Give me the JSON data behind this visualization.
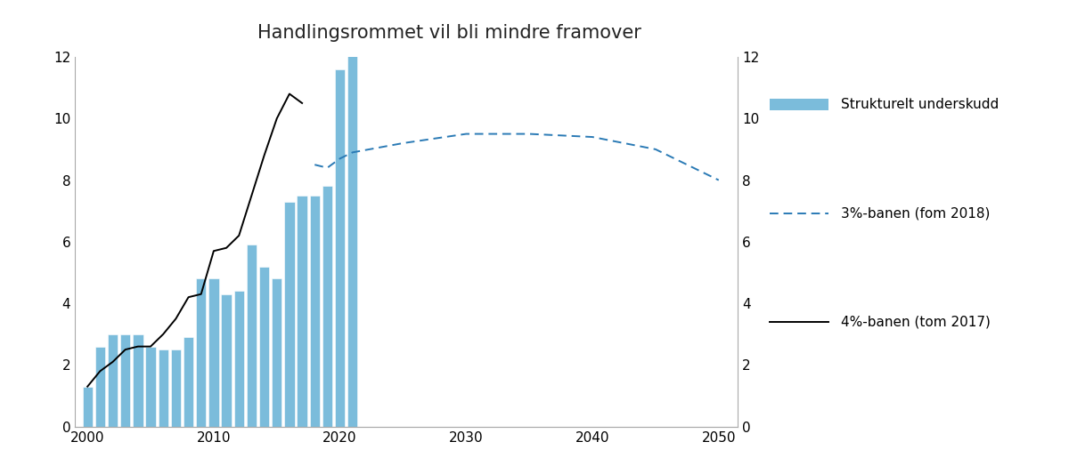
{
  "title": "Handlingsrommet vil bli mindre framover",
  "bar_years": [
    2000,
    2001,
    2002,
    2003,
    2004,
    2005,
    2006,
    2007,
    2008,
    2009,
    2010,
    2011,
    2012,
    2013,
    2014,
    2015,
    2016,
    2017,
    2018,
    2019,
    2020,
    2021
  ],
  "bar_values": [
    1.3,
    2.6,
    3.0,
    3.0,
    3.0,
    2.6,
    2.5,
    2.5,
    2.9,
    4.8,
    4.8,
    4.3,
    4.4,
    5.9,
    5.2,
    4.8,
    7.3,
    7.5,
    7.5,
    7.8,
    11.6,
    12.1
  ],
  "bar_color": "#7bbcdb",
  "line4_years": [
    2000,
    2001,
    2002,
    2003,
    2004,
    2005,
    2006,
    2007,
    2008,
    2009,
    2010,
    2011,
    2012,
    2013,
    2014,
    2015,
    2016,
    2017
  ],
  "line4_values": [
    1.3,
    1.8,
    2.1,
    2.5,
    2.6,
    2.6,
    3.0,
    3.5,
    4.2,
    4.3,
    5.7,
    5.8,
    6.2,
    7.5,
    8.8,
    10.0,
    10.8,
    10.5
  ],
  "line3_years": [
    2018,
    2019,
    2020,
    2021,
    2025,
    2030,
    2035,
    2040,
    2045,
    2050
  ],
  "line3_values": [
    8.5,
    8.4,
    8.7,
    8.9,
    9.2,
    9.5,
    9.5,
    9.4,
    9.0,
    8.0
  ],
  "line4_color": "#000000",
  "line3_color": "#2a7ab5",
  "background_color": "#ffffff",
  "ylim": [
    0,
    12
  ],
  "xlim": [
    1999.0,
    2051.5
  ],
  "xticks": [
    2000,
    2010,
    2020,
    2030,
    2040,
    2050
  ],
  "yticks": [
    0,
    2,
    4,
    6,
    8,
    10,
    12
  ],
  "legend_bar_label": "Strukturelt underskudd",
  "legend_line3_label": "3%-banen (fom 2018)",
  "legend_line4_label": "4%-banen (tom 2017)",
  "title_fontsize": 15,
  "bar_width": 0.8
}
